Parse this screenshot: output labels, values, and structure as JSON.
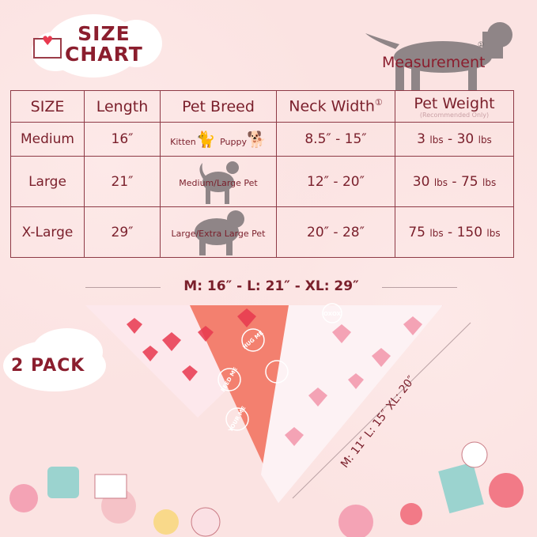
{
  "header": {
    "title_line1": "SIZE",
    "title_line2": "CHART",
    "measurement_label": "Measurement",
    "neck_marker": "①"
  },
  "table": {
    "columns": [
      "SIZE",
      "Length",
      "Pet Breed",
      "Neck Width",
      "Pet Weight"
    ],
    "weight_note": "(Recommended Only)",
    "rows": [
      {
        "size": "Medium",
        "length": "16″",
        "breed": [
          "Kitten",
          "Puppy"
        ],
        "neck": "8.5″ -  15″",
        "w_min": "3",
        "w_max": "30",
        "unit": "lbs"
      },
      {
        "size": "Large",
        "length": "21″",
        "breed": [
          "Medium/Large Pet"
        ],
        "neck": "12″ -  20″",
        "w_min": "30",
        "w_max": "75",
        "unit": "lbs"
      },
      {
        "size": "X-Large",
        "length": "29″",
        "breed": [
          "Large/Extra Large Pet"
        ],
        "neck": "20″ -  28″",
        "w_min": "75",
        "w_max": "150",
        "unit": "lbs"
      }
    ]
  },
  "dimensions": {
    "top": "M: 16″ - L: 21″ - XL: 29″",
    "side": "M: 11″  L: 15″  XL: 20″"
  },
  "badge": {
    "pack": "2 PACK"
  },
  "bandana_text": [
    "HUG ME",
    "FEED ME",
    "YOUR ME",
    "XOXO"
  ],
  "colors": {
    "background": "#fbe3e2",
    "text": "#7a1f2b",
    "border": "#8e3a46",
    "coral": "#f07a6e",
    "heart_red": "#e8394f",
    "heart_pink": "#f2a0b0"
  },
  "icons": [
    "envelope-heart-icon",
    "dog-silhouette-icon",
    "cat-silhouette-icon",
    "puppy-silhouette-icon",
    "husky-silhouette-icon",
    "large-dog-silhouette-icon"
  ]
}
